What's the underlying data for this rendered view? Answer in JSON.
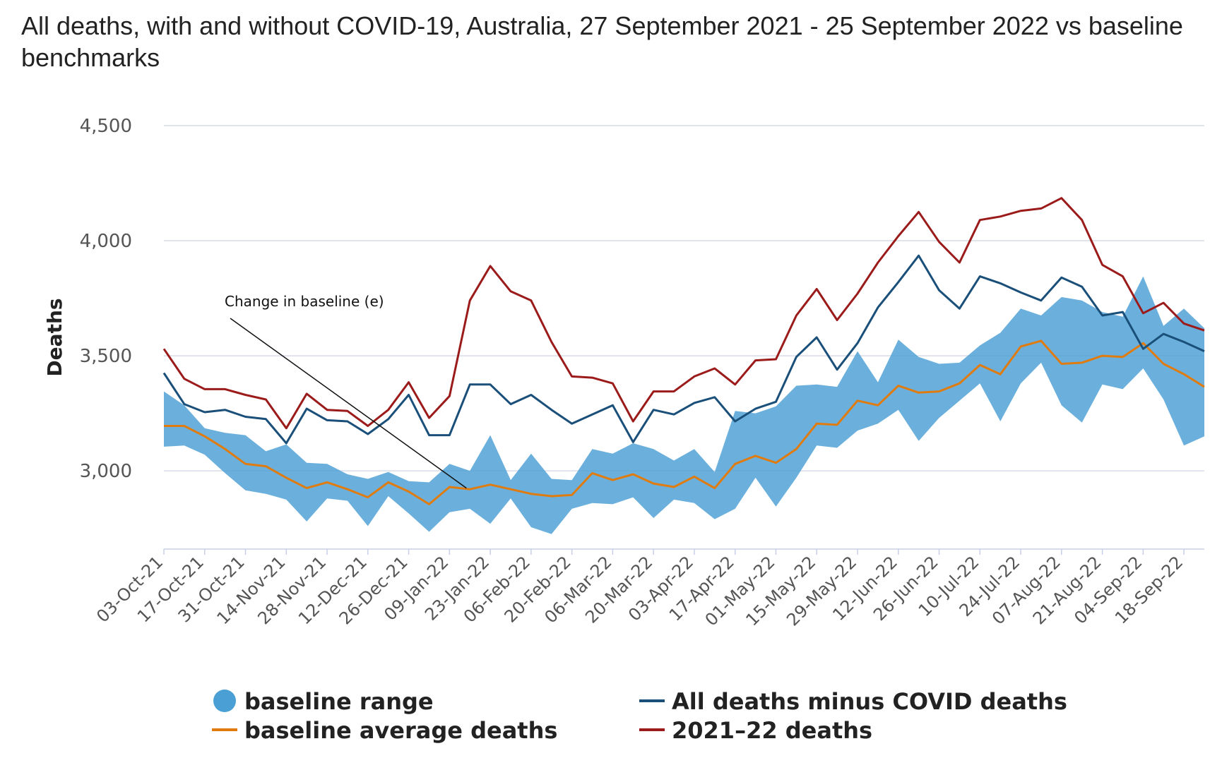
{
  "title": "All deaths, with and without COVID-19, Australia, 27 September 2021 - 25 September 2022 vs baseline benchmarks",
  "chart_data": {
    "type": "line",
    "title": "All deaths, with and without COVID-19, Australia, 27 September 2021 - 25 September 2022 vs baseline benchmarks",
    "ylabel": "Deaths",
    "xlabel": "",
    "ylim": [
      2660,
      4500
    ],
    "yticks": [
      3000,
      3500,
      4000,
      4500
    ],
    "ytick_labels": [
      "3,000",
      "3,500",
      "4,000",
      "4,500"
    ],
    "grid": true,
    "legend_position": "bottom",
    "x": [
      "03-Oct-21",
      "10-Oct-21",
      "17-Oct-21",
      "24-Oct-21",
      "31-Oct-21",
      "07-Nov-21",
      "14-Nov-21",
      "21-Nov-21",
      "28-Nov-21",
      "05-Dec-21",
      "12-Dec-21",
      "19-Dec-21",
      "26-Dec-21",
      "02-Jan-22",
      "09-Jan-22",
      "16-Jan-22",
      "23-Jan-22",
      "30-Jan-22",
      "06-Feb-22",
      "13-Feb-22",
      "20-Feb-22",
      "27-Feb-22",
      "06-Mar-22",
      "13-Mar-22",
      "20-Mar-22",
      "27-Mar-22",
      "03-Apr-22",
      "10-Apr-22",
      "17-Apr-22",
      "24-Apr-22",
      "01-May-22",
      "08-May-22",
      "15-May-22",
      "22-May-22",
      "29-May-22",
      "05-Jun-22",
      "12-Jun-22",
      "19-Jun-22",
      "26-Jun-22",
      "03-Jul-22",
      "10-Jul-22",
      "17-Jul-22",
      "24-Jul-22",
      "31-Jul-22",
      "07-Aug-22",
      "14-Aug-22",
      "21-Aug-22",
      "28-Aug-22",
      "04-Sep-22",
      "11-Sep-22",
      "18-Sep-22",
      "25-Sep-22"
    ],
    "x_tick_labels": [
      "03-Oct-21",
      "17-Oct-21",
      "31-Oct-21",
      "14-Nov-21",
      "28-Nov-21",
      "12-Dec-21",
      "26-Dec-21",
      "09-Jan-22",
      "23-Jan-22",
      "06-Feb-22",
      "20-Feb-22",
      "06-Mar-22",
      "20-Mar-22",
      "03-Apr-22",
      "17-Apr-22",
      "01-May-22",
      "15-May-22",
      "29-May-22",
      "12-Jun-22",
      "26-Jun-22",
      "10-Jul-22",
      "24-Jul-22",
      "07-Aug-22",
      "21-Aug-22",
      "04-Sep-22",
      "18-Sep-22"
    ],
    "series": [
      {
        "name": "baseline range",
        "kind": "range",
        "color": "#4a9fd4",
        "upper": [
          3345,
          3285,
          3185,
          3165,
          3155,
          3085,
          3115,
          3035,
          3030,
          2985,
          2965,
          2995,
          2955,
          2950,
          3030,
          3000,
          3155,
          2960,
          3075,
          2965,
          2960,
          3095,
          3075,
          3120,
          3095,
          3045,
          3095,
          2995,
          3260,
          3250,
          3280,
          3370,
          3375,
          3365,
          3520,
          3385,
          3570,
          3495,
          3465,
          3470,
          3545,
          3600,
          3705,
          3675,
          3755,
          3740,
          3690,
          3670,
          3845,
          3630,
          3705,
          3620
        ],
        "lower": [
          3105,
          3110,
          3070,
          2990,
          2915,
          2900,
          2875,
          2780,
          2880,
          2870,
          2760,
          2890,
          2815,
          2735,
          2820,
          2835,
          2770,
          2880,
          2755,
          2725,
          2835,
          2860,
          2855,
          2885,
          2795,
          2875,
          2860,
          2790,
          2835,
          2970,
          2845,
          2970,
          3110,
          3100,
          3175,
          3205,
          3265,
          3130,
          3230,
          3305,
          3380,
          3215,
          3380,
          3470,
          3285,
          3210,
          3375,
          3355,
          3445,
          3310,
          3110,
          3150
        ]
      },
      {
        "name": "baseline average deaths",
        "kind": "line",
        "color": "#e07b10",
        "values": [
          3195,
          3195,
          3150,
          3095,
          3030,
          3020,
          2970,
          2925,
          2950,
          2920,
          2885,
          2950,
          2910,
          2855,
          2930,
          2920,
          2940,
          2920,
          2900,
          2890,
          2895,
          2990,
          2960,
          2985,
          2945,
          2930,
          2975,
          2925,
          3030,
          3065,
          3035,
          3095,
          3205,
          3200,
          3305,
          3285,
          3370,
          3340,
          3345,
          3380,
          3460,
          3420,
          3540,
          3565,
          3465,
          3470,
          3500,
          3495,
          3555,
          3465,
          3420,
          3365
        ]
      },
      {
        "name": "All deaths minus COVID deaths",
        "kind": "line",
        "color": "#1a4f7a",
        "values": [
          3425,
          3290,
          3255,
          3265,
          3235,
          3225,
          3120,
          3270,
          3220,
          3215,
          3160,
          3225,
          3330,
          3155,
          3155,
          3375,
          3375,
          3290,
          3330,
          3265,
          3205,
          3245,
          3285,
          3125,
          3265,
          3245,
          3295,
          3320,
          3215,
          3270,
          3300,
          3495,
          3580,
          3440,
          3555,
          3710,
          3820,
          3935,
          3785,
          3705,
          3845,
          3815,
          3775,
          3740,
          3840,
          3800,
          3675,
          3690,
          3530,
          3595,
          3560,
          3520
        ]
      },
      {
        "name": "2021–22 deaths",
        "kind": "line",
        "color": "#9b1b1b",
        "values": [
          3530,
          3400,
          3355,
          3355,
          3330,
          3310,
          3185,
          3335,
          3265,
          3260,
          3195,
          3265,
          3385,
          3230,
          3325,
          3740,
          3890,
          3780,
          3740,
          3560,
          3410,
          3405,
          3380,
          3215,
          3345,
          3345,
          3410,
          3445,
          3375,
          3480,
          3485,
          3675,
          3790,
          3655,
          3770,
          3905,
          4020,
          4125,
          3995,
          3905,
          4090,
          4105,
          4130,
          4140,
          4185,
          4090,
          3895,
          3845,
          3685,
          3730,
          3640,
          3610
        ]
      }
    ],
    "annotations": [
      {
        "text": "Change in baseline (e)",
        "points_to": "09-Jan-22"
      }
    ]
  }
}
